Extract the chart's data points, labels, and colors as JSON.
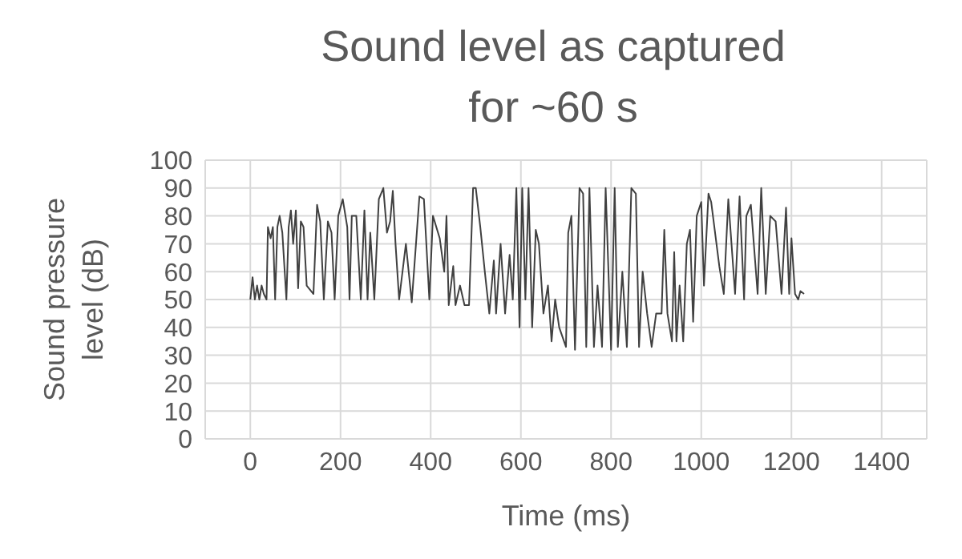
{
  "chart_data": {
    "type": "line",
    "title": "Sound level as captured for ~60 s",
    "xlabel": "Time (ms)",
    "ylabel": "Sound pressure level (dB)",
    "xlim": [
      -100,
      1500
    ],
    "xticks": [
      0,
      200,
      400,
      600,
      800,
      1000,
      1200,
      1400
    ],
    "ylim": [
      0,
      100
    ],
    "yticks": [
      0,
      10,
      20,
      30,
      40,
      50,
      60,
      70,
      80,
      90,
      100
    ],
    "grid": true,
    "marker": "none",
    "line_style": "solid",
    "series": [
      {
        "color": "#404040",
        "x": [
          0,
          5,
          10,
          15,
          20,
          25,
          30,
          36,
          39,
          45,
          50,
          55,
          60,
          65,
          71,
          80,
          85,
          90,
          95,
          101,
          106,
          112,
          118,
          125,
          140,
          148,
          155,
          163,
          172,
          180,
          187,
          195,
          205,
          215,
          220,
          225,
          235,
          245,
          253,
          260,
          266,
          275,
          285,
          295,
          303,
          310,
          316,
          322,
          330,
          345,
          358,
          375,
          385,
          397,
          405,
          420,
          430,
          435,
          440,
          450,
          455,
          465,
          475,
          485,
          494,
          500,
          510,
          520,
          530,
          540,
          545,
          555,
          565,
          575,
          582,
          590,
          597,
          603,
          610,
          617,
          625,
          633,
          640,
          650,
          660,
          668,
          676,
          685,
          700,
          705,
          712,
          720,
          730,
          738,
          745,
          752,
          762,
          770,
          780,
          788,
          800,
          808,
          815,
          825,
          835,
          845,
          855,
          862,
          870,
          880,
          890,
          900,
          912,
          918,
          925,
          935,
          940,
          945,
          952,
          960,
          968,
          975,
          982,
          990,
          1000,
          1006,
          1016,
          1022,
          1040,
          1050,
          1060,
          1075,
          1085,
          1095,
          1100,
          1110,
          1125,
          1133,
          1143,
          1153,
          1165,
          1178,
          1188,
          1195,
          1200,
          1208,
          1215,
          1220,
          1228
        ],
        "values": [
          50,
          58,
          50,
          55,
          50,
          55,
          52,
          50,
          76,
          72,
          76,
          50,
          76,
          80,
          74,
          50,
          76,
          82,
          70,
          82,
          54,
          78,
          76,
          55,
          52,
          84,
          78,
          50,
          78,
          74,
          50,
          80,
          86,
          76,
          50,
          80,
          80,
          50,
          82,
          50,
          74,
          50,
          86,
          90,
          74,
          78,
          89,
          70,
          50,
          70,
          49,
          87,
          86,
          50,
          80,
          72,
          60,
          80,
          48,
          62,
          48,
          55,
          48,
          48,
          90,
          90,
          76,
          60,
          45,
          64,
          45,
          70,
          45,
          66,
          50,
          90,
          40,
          90,
          50,
          90,
          40,
          75,
          70,
          45,
          55,
          35,
          50,
          40,
          33,
          74,
          80,
          32,
          90,
          88,
          33,
          90,
          33,
          55,
          33,
          90,
          32,
          90,
          33,
          60,
          33,
          90,
          88,
          33,
          60,
          45,
          33,
          45,
          45,
          75,
          45,
          35,
          67,
          35,
          55,
          35,
          70,
          75,
          42,
          80,
          85,
          55,
          88,
          85,
          62,
          52,
          86,
          52,
          87,
          50,
          80,
          84,
          52,
          90,
          52,
          80,
          78,
          52,
          83,
          52,
          72,
          52,
          50,
          53,
          52
        ]
      }
    ]
  }
}
